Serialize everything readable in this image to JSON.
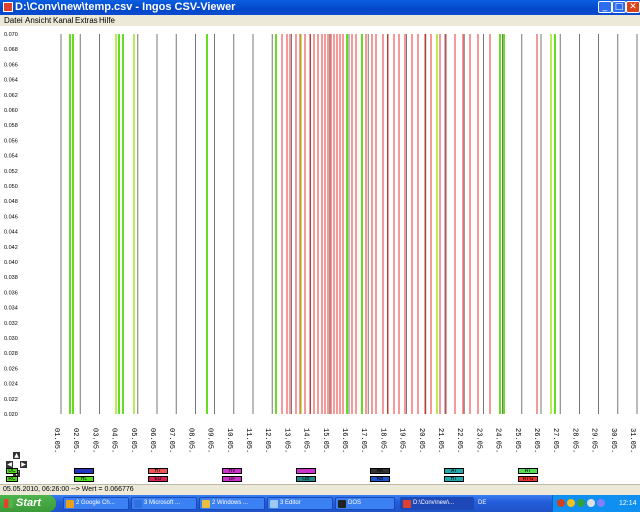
{
  "window": {
    "title": "D:\\Conv\\new\\temp.csv - Ingos CSV-Viewer",
    "min_glyph": "_",
    "max_glyph": "□",
    "close_glyph": "✕"
  },
  "menu": [
    "Datei",
    "Ansicht",
    "Kanal",
    "Extras",
    "Hilfe"
  ],
  "chart_data": {
    "type": "line",
    "y_ticks": [
      "0.070",
      "0.068",
      "0.066",
      "0.064",
      "0.062",
      "0.060",
      "0.058",
      "0.056",
      "0.054",
      "0.052",
      "0.050",
      "0.048",
      "0.046",
      "0.044",
      "0.042",
      "0.040",
      "0.038",
      "0.036",
      "0.034",
      "0.032",
      "0.030",
      "0.028",
      "0.026",
      "0.024",
      "0.022",
      "0.020"
    ],
    "ylim": [
      0.02,
      0.07
    ],
    "x_ticks": [
      "01.05.",
      "02.05.",
      "03.05.",
      "04.05.",
      "05.05.",
      "06.05.",
      "07.05.",
      "08.05.",
      "09.05.",
      "10.05.",
      "11.05.",
      "12.05.",
      "13.05.",
      "14.05.",
      "15.05.",
      "16.05.",
      "17.05.",
      "18.05.",
      "19.05.",
      "20.05.",
      "21.05.",
      "22.05.",
      "23.05.",
      "24.05.",
      "25.05.",
      "26.05.",
      "27.05.",
      "28.05.",
      "29.05.",
      "30.05.",
      "31.05."
    ],
    "grid": true,
    "colors": {
      "gray": "#555555",
      "green": "#66dd22",
      "lime": "#b8ee55",
      "red": "#ee3333"
    }
  },
  "legend_chips": [
    {
      "label": "DC",
      "color": "#55dd22"
    },
    {
      "label": "RC",
      "color": "#55dd22"
    },
    {
      "label": "",
      "color": "#2233bb"
    },
    {
      "label": "HL",
      "color": "#55dd22"
    },
    {
      "label": "HT",
      "color": "#ee5555"
    },
    {
      "label": "EU",
      "color": "#dd2255"
    },
    {
      "label": "HV",
      "color": "#cc33cc"
    },
    {
      "label": "UF",
      "color": "#cc33cc"
    },
    {
      "label": "",
      "color": "#cc33cc"
    },
    {
      "label": "OB",
      "color": "#228888"
    },
    {
      "label": "AK",
      "color": "#333333"
    },
    {
      "label": "AB",
      "color": "#2255cc"
    },
    {
      "label": "AT",
      "color": "#22aaaa"
    },
    {
      "label": "HT",
      "color": "#22aaaa"
    },
    {
      "label": "RT",
      "color": "#55dd55"
    },
    {
      "label": "RTG",
      "color": "#ee3333"
    }
  ],
  "status": "05.05.2010, 06:26:00 --> Wert = 0.066776",
  "taskbar": {
    "start": "Start",
    "buttons": [
      {
        "label": "2 Google Ch...",
        "icon_color": "#e8a020"
      },
      {
        "label": "3 Microsoft ...",
        "icon_color": "#3070e0"
      },
      {
        "label": "2 Windows ...",
        "icon_color": "#e8c040"
      },
      {
        "label": "3 Editor",
        "icon_color": "#a0c8f0"
      },
      {
        "label": "DOS",
        "icon_color": "#222222"
      },
      {
        "label": "D:\\Conv\\new\\...",
        "icon_color": "#e04030"
      }
    ],
    "lang": "DE",
    "clock": "12:14"
  }
}
